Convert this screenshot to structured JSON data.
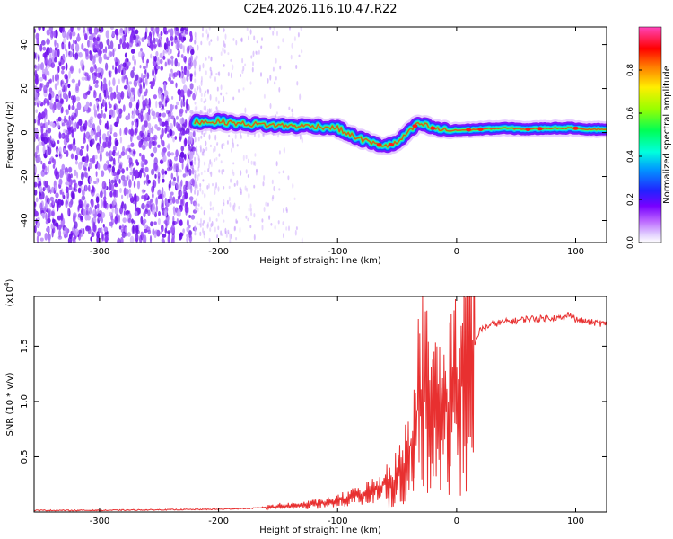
{
  "title": "C2E4.2026.116.10.47.R22",
  "spectrogram": {
    "type": "heatmap",
    "xlabel": "Height of straight line (km)",
    "ylabel": "Frequency (Hz)",
    "xlim": [
      -355,
      126
    ],
    "ylim": [
      -50,
      48
    ],
    "xticks": [
      "-300",
      "-200",
      "-100",
      "0",
      "100"
    ],
    "xtick_values": [
      -300,
      -200,
      -100,
      0,
      100
    ],
    "yticks": [
      "40",
      "20",
      "0",
      "-20",
      "-40"
    ],
    "ytick_values": [
      40,
      20,
      0,
      -20,
      -40
    ],
    "noise_region_end_km": -220,
    "signal_ridge": {
      "x": [
        -220,
        -200,
        -180,
        -160,
        -140,
        -120,
        -100,
        -90,
        -80,
        -70,
        -60,
        -50,
        -45,
        -40,
        -35,
        -30,
        -20,
        -10,
        0,
        20,
        40,
        60,
        80,
        90,
        100,
        110,
        126
      ],
      "y": [
        5,
        5,
        4,
        3.5,
        3,
        3,
        2,
        -1,
        -3,
        -5,
        -6,
        -5,
        -2,
        0,
        3,
        4,
        2,
        1,
        1,
        1.5,
        2,
        1.5,
        2,
        2,
        2,
        1.5,
        1.5
      ]
    },
    "colorbar": {
      "label": "Normalized spectral amplitude",
      "ticks": [
        "0.0",
        "0.2",
        "0.4",
        "0.6",
        "0.8"
      ],
      "tick_values": [
        0.0,
        0.2,
        0.4,
        0.6,
        0.8
      ],
      "range": [
        0,
        1
      ],
      "colors": [
        "#ffffff",
        "#cc99ff",
        "#7700ff",
        "#2244ff",
        "#00ccff",
        "#00ff88",
        "#66ff00",
        "#ffee00",
        "#ff8800",
        "#ff0000",
        "#ff3399",
        "#ff66cc"
      ]
    }
  },
  "snr_plot": {
    "type": "line",
    "xlabel": "Height of straight line (km)",
    "ylabel": "SNR (10 * v/v)",
    "scale_label": "(x10",
    "scale_exp": "4",
    "scale_close": ")",
    "xlim": [
      -355,
      126
    ],
    "ylim": [
      0,
      1.95
    ],
    "xticks": [
      "-300",
      "-200",
      "-100",
      "0",
      "100"
    ],
    "xtick_values": [
      -300,
      -200,
      -100,
      0,
      100
    ],
    "yticks": [
      "0.5",
      "1.0",
      "1.5"
    ],
    "ytick_values": [
      0.5,
      1.0,
      1.5
    ],
    "line_color": "#e83030",
    "series": [
      {
        "name": "SNR",
        "x": [
          -355,
          -300,
          -250,
          -200,
          -170,
          -150,
          -130,
          -110,
          -100,
          -90,
          -80,
          -70,
          -60,
          -50,
          -45,
          -40,
          -35,
          -30,
          -25,
          -20,
          -15,
          -10,
          -5,
          0,
          5,
          10,
          20,
          30,
          40,
          50,
          60,
          70,
          80,
          90,
          95,
          100,
          110,
          126
        ],
        "y": [
          0.01,
          0.01,
          0.015,
          0.02,
          0.03,
          0.05,
          0.06,
          0.08,
          0.1,
          0.13,
          0.16,
          0.2,
          0.25,
          0.3,
          0.4,
          0.55,
          0.8,
          1.1,
          1.0,
          0.9,
          0.9,
          0.9,
          1.0,
          1.1,
          1.2,
          1.4,
          1.65,
          1.7,
          1.72,
          1.73,
          1.75,
          1.75,
          1.76,
          1.75,
          1.8,
          1.74,
          1.72,
          1.7
        ]
      }
    ]
  }
}
